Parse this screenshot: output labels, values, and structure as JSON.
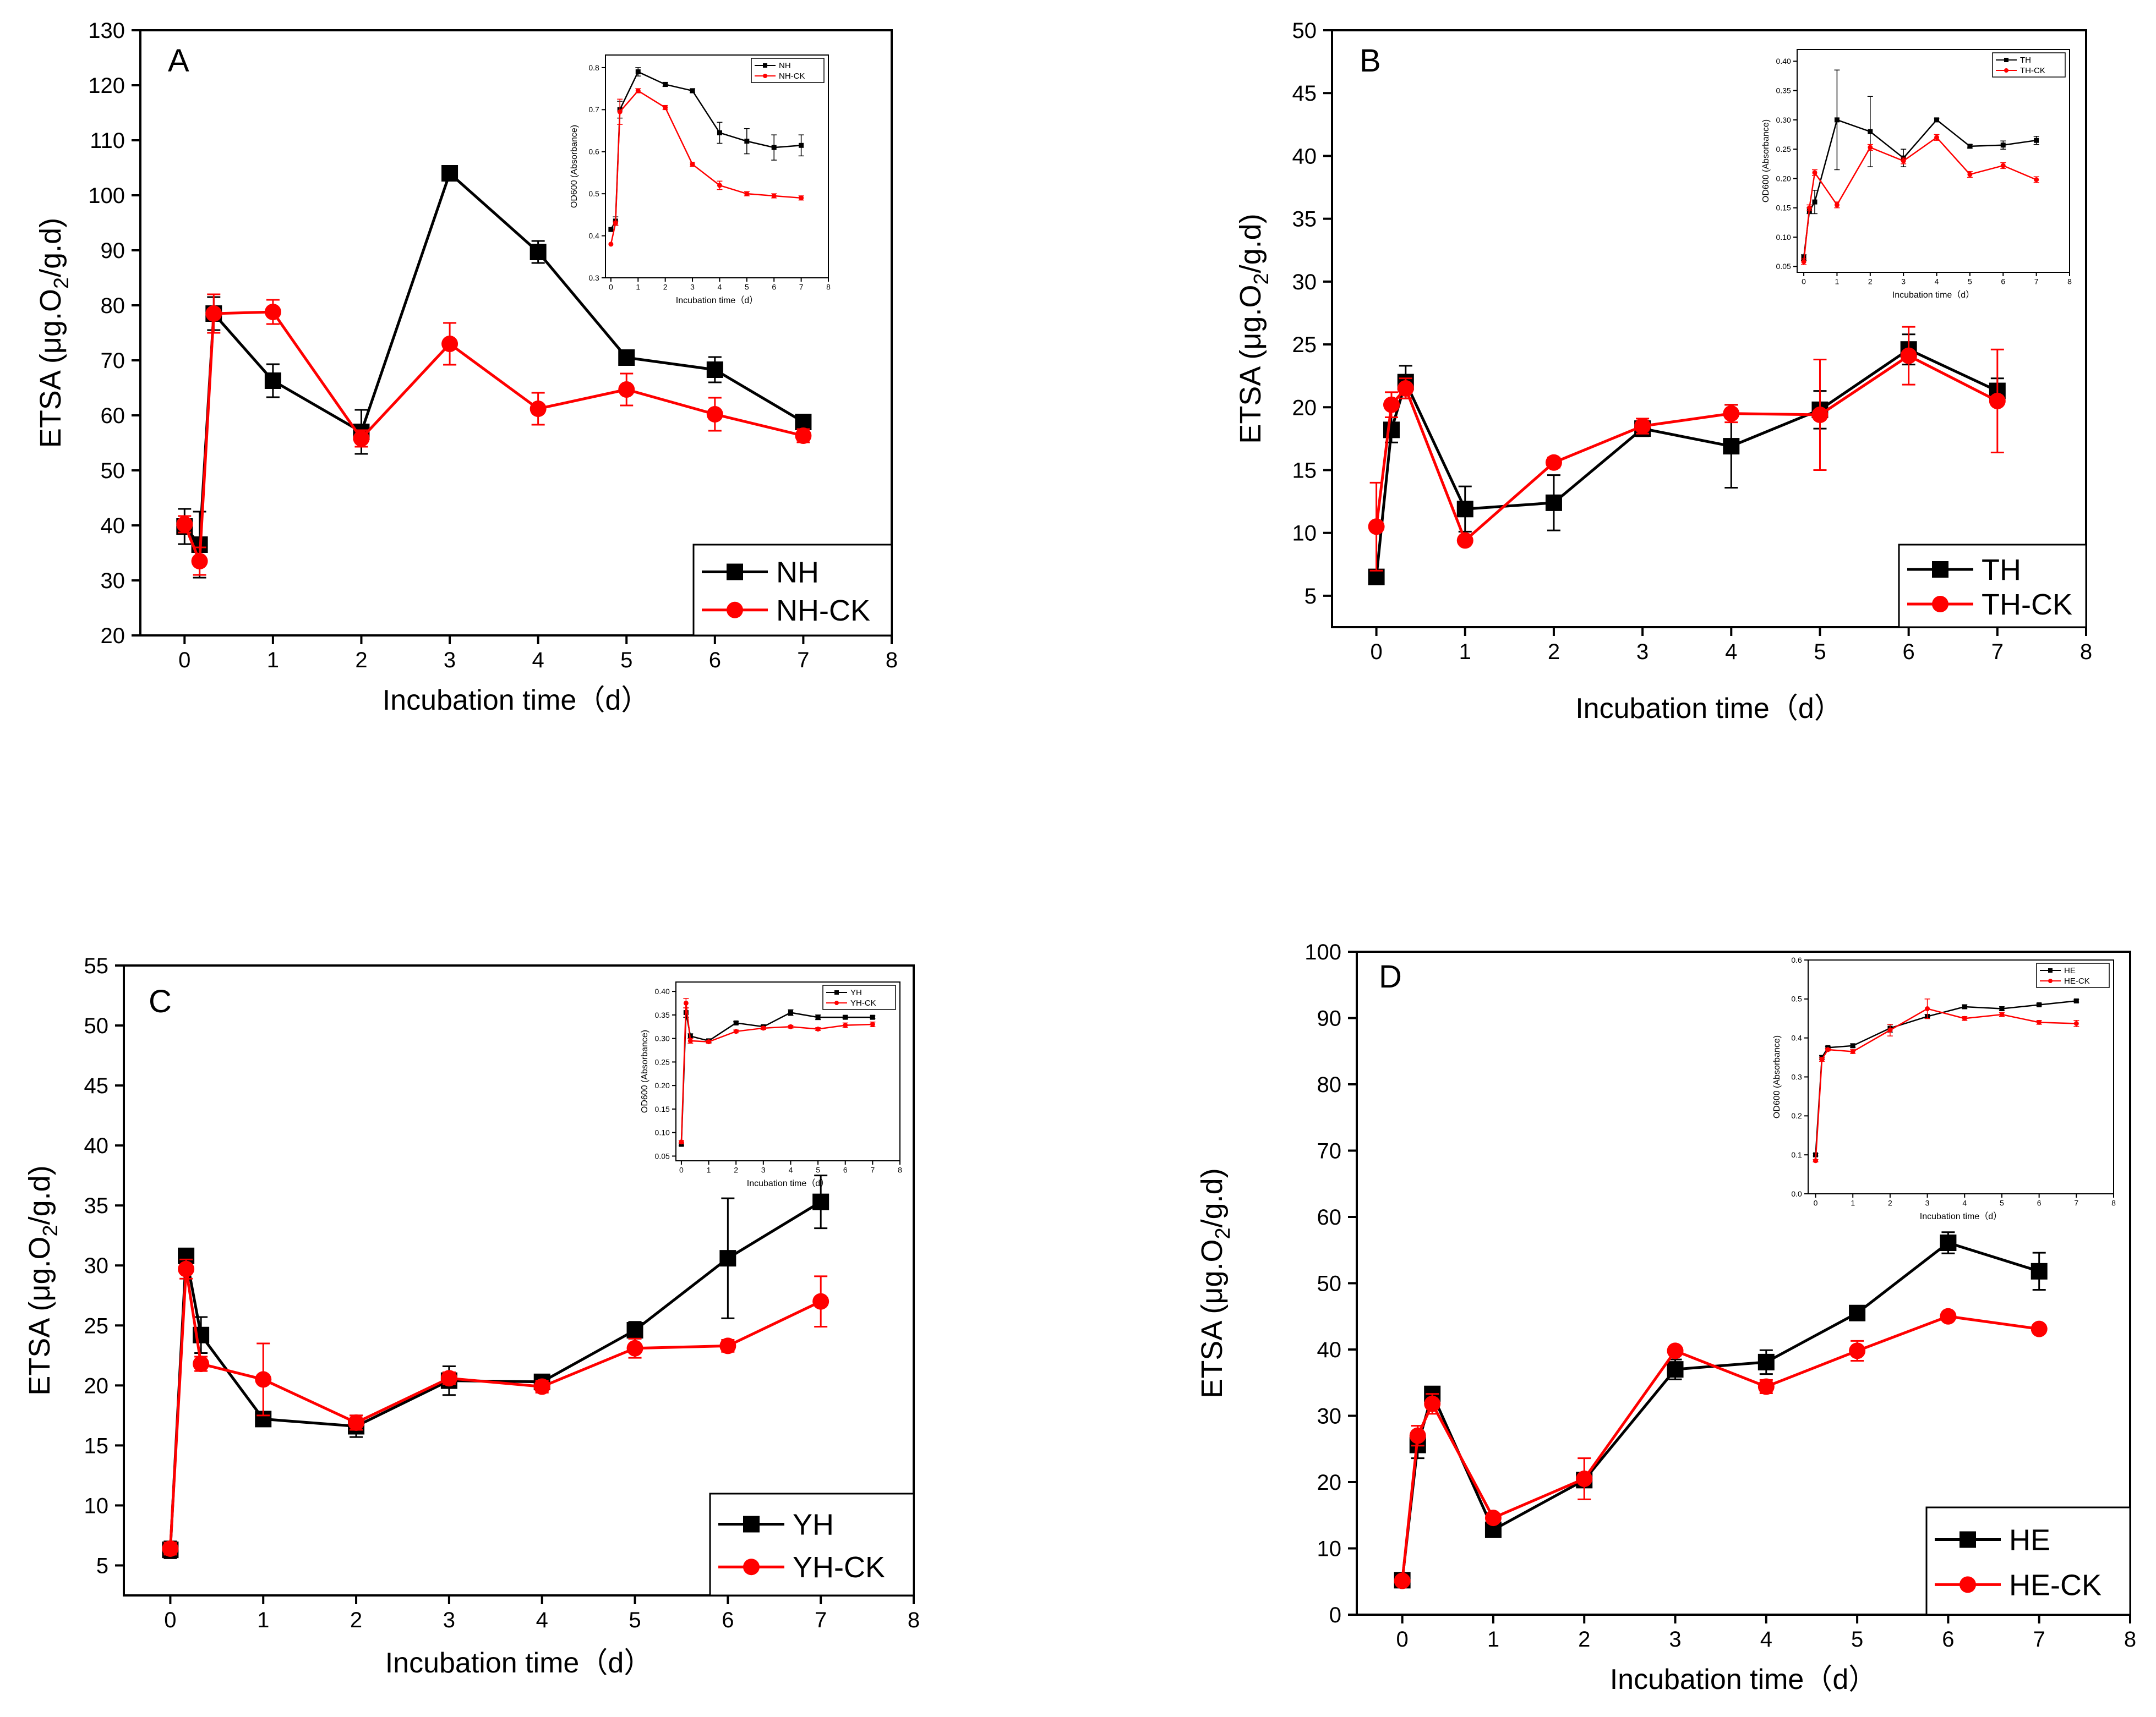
{
  "colors": {
    "series1": "#000000",
    "series2": "#ff0000",
    "axis": "#000000"
  },
  "chart_data": [
    {
      "panel": "A",
      "type": "line",
      "xlabel": "Incubation time（d）",
      "ylabel_main": "ETSA (μg.O",
      "ylabel_sub": "2",
      "ylabel_tail": "/g.d)",
      "xlim": [
        -0.5,
        8
      ],
      "ylim": [
        20,
        130
      ],
      "xticks": [
        0,
        1,
        2,
        3,
        4,
        5,
        6,
        7,
        8
      ],
      "yticks": [
        20,
        30,
        40,
        50,
        60,
        70,
        80,
        90,
        100,
        110,
        120,
        130
      ],
      "series": [
        {
          "name": "NH",
          "x": [
            0,
            0.17,
            0.33,
            1,
            2,
            3,
            4,
            5,
            6,
            7
          ],
          "y": [
            39.8,
            36.5,
            78.5,
            66.3,
            57.0,
            104.0,
            89.7,
            70.5,
            68.3,
            58.8
          ],
          "err": [
            3.2,
            6.0,
            3.0,
            3.0,
            4.0,
            0.6,
            2.0,
            0.8,
            2.3,
            1.0
          ]
        },
        {
          "name": "NH-CK",
          "x": [
            0,
            0.17,
            0.33,
            1,
            2,
            3,
            4,
            5,
            6,
            7
          ],
          "y": [
            40.2,
            33.5,
            78.5,
            78.8,
            55.8,
            73.0,
            61.2,
            64.7,
            60.2,
            56.3
          ],
          "err": [
            1.5,
            2.5,
            3.5,
            2.2,
            1.5,
            3.8,
            2.9,
            2.9,
            3.0,
            1.2
          ]
        }
      ],
      "inset": {
        "xlabel": "Incubation time（d）",
        "ylabel": "OD600 (Absorbance)",
        "xlim": [
          -0.2,
          8
        ],
        "ylim": [
          0.3,
          0.83
        ],
        "xticks": [
          0,
          1,
          2,
          3,
          4,
          5,
          6,
          7,
          8
        ],
        "yticks": [
          0.3,
          0.4,
          0.5,
          0.6,
          0.7,
          0.8
        ],
        "ytick_labels": [
          "0.3",
          "0.4",
          "0.5",
          "0.6",
          "0.7",
          "0.8"
        ],
        "series": [
          {
            "name": "NH",
            "x": [
              0,
              0.17,
              0.33,
              1,
              2,
              3,
              4,
              5,
              6,
              7
            ],
            "y": [
              0.415,
              0.435,
              0.7,
              0.79,
              0.76,
              0.745,
              0.645,
              0.625,
              0.61,
              0.615
            ],
            "err": [
              0,
              0.01,
              0.02,
              0.01,
              0.005,
              0.005,
              0.025,
              0.03,
              0.03,
              0.025
            ]
          },
          {
            "name": "NH-CK",
            "x": [
              0,
              0.17,
              0.33,
              1,
              2,
              3,
              4,
              5,
              6,
              7
            ],
            "y": [
              0.38,
              0.43,
              0.695,
              0.745,
              0.705,
              0.57,
              0.52,
              0.5,
              0.495,
              0.49
            ],
            "err": [
              0,
              0.005,
              0.03,
              0.005,
              0.005,
              0.005,
              0.01,
              0.005,
              0.005,
              0.005
            ]
          }
        ]
      }
    },
    {
      "panel": "B",
      "type": "line",
      "xlabel": "Incubation time（d）",
      "ylabel_main": "ETSA (μg.O",
      "ylabel_sub": "2",
      "ylabel_tail": "/g.d)",
      "xlim": [
        -0.5,
        8
      ],
      "ylim": [
        2.5,
        50
      ],
      "xticks": [
        0,
        1,
        2,
        3,
        4,
        5,
        6,
        7,
        8
      ],
      "yticks": [
        5,
        10,
        15,
        20,
        25,
        30,
        35,
        40,
        45,
        50
      ],
      "series": [
        {
          "name": "TH",
          "x": [
            0,
            0.17,
            0.33,
            1,
            2,
            3,
            4,
            5,
            6,
            7
          ],
          "y": [
            6.5,
            18.2,
            22.0,
            11.9,
            12.4,
            18.3,
            16.9,
            19.8,
            24.6,
            21.3
          ],
          "err": [
            0.3,
            1.0,
            1.3,
            1.8,
            2.2,
            0.6,
            3.3,
            1.5,
            1.2,
            1.0
          ]
        },
        {
          "name": "TH-CK",
          "x": [
            0,
            0.17,
            0.33,
            1,
            2,
            3,
            4,
            5,
            6,
            7
          ],
          "y": [
            10.5,
            20.2,
            21.5,
            9.4,
            15.6,
            18.5,
            19.5,
            19.4,
            24.1,
            20.5
          ],
          "err": [
            3.5,
            1.0,
            0.8,
            0.3,
            0.4,
            0.6,
            0.7,
            4.4,
            2.3,
            4.1
          ]
        }
      ],
      "inset": {
        "xlabel": "Incubation time（d）",
        "ylabel": "OD600 (Absorbance)",
        "xlim": [
          -0.2,
          8
        ],
        "ylim": [
          0.04,
          0.42
        ],
        "xticks": [
          0,
          1,
          2,
          3,
          4,
          5,
          6,
          7,
          8
        ],
        "yticks": [
          0.05,
          0.1,
          0.15,
          0.2,
          0.25,
          0.3,
          0.35,
          0.4
        ],
        "ytick_labels": [
          "0.05",
          "0.10",
          "0.15",
          "0.20",
          "0.25",
          "0.30",
          "0.35",
          "0.40"
        ],
        "series": [
          {
            "name": "TH",
            "x": [
              0,
              0.17,
              0.33,
              1,
              2,
              3,
              4,
              5,
              6,
              7
            ],
            "y": [
              0.065,
              0.145,
              0.16,
              0.3,
              0.28,
              0.235,
              0.3,
              0.255,
              0.257,
              0.265
            ],
            "err": [
              0.005,
              0.005,
              0.02,
              0.085,
              0.06,
              0.015,
              0.003,
              0.003,
              0.007,
              0.007
            ]
          },
          {
            "name": "TH-CK",
            "x": [
              0,
              0.17,
              0.33,
              1,
              2,
              3,
              4,
              5,
              6,
              7
            ],
            "y": [
              0.058,
              0.15,
              0.21,
              0.155,
              0.253,
              0.23,
              0.27,
              0.207,
              0.222,
              0.198
            ],
            "err": [
              0.005,
              0.005,
              0.005,
              0.005,
              0.005,
              0.005,
              0.005,
              0.005,
              0.005,
              0.005
            ]
          }
        ]
      }
    },
    {
      "panel": "C",
      "type": "line",
      "xlabel": "Incubation time（d）",
      "ylabel_main": "ETSA (μg.O",
      "ylabel_sub": "2",
      "ylabel_tail": "/g.d)",
      "xlim": [
        -0.5,
        8
      ],
      "ylim": [
        2.5,
        55
      ],
      "xticks": [
        0,
        1,
        2,
        3,
        4,
        5,
        6,
        7,
        8
      ],
      "yticks": [
        5,
        10,
        15,
        20,
        25,
        30,
        35,
        40,
        45,
        50,
        55
      ],
      "series": [
        {
          "name": "YH",
          "x": [
            0,
            0.17,
            0.33,
            1,
            2,
            3,
            4,
            5,
            6,
            7
          ],
          "y": [
            6.3,
            30.8,
            24.2,
            17.2,
            16.6,
            20.4,
            20.3,
            24.6,
            30.6,
            35.3
          ],
          "err": [
            0.7,
            0.4,
            1.5,
            0.3,
            0.9,
            1.2,
            0.5,
            0.7,
            5.0,
            2.2
          ]
        },
        {
          "name": "YH-CK",
          "x": [
            0,
            0.17,
            0.33,
            1,
            2,
            3,
            4,
            5,
            6,
            7
          ],
          "y": [
            6.4,
            29.7,
            21.8,
            20.5,
            16.9,
            20.6,
            19.9,
            23.1,
            23.3,
            27.0
          ],
          "err": [
            0.5,
            0.8,
            0.6,
            3.0,
            0.6,
            0.5,
            0.5,
            0.8,
            0.5,
            2.1
          ]
        }
      ],
      "inset": {
        "xlabel": "Incubation time（d）",
        "ylabel": "OD600 (Absorbance)",
        "xlim": [
          -0.2,
          8
        ],
        "ylim": [
          0.04,
          0.42
        ],
        "xticks": [
          0,
          1,
          2,
          3,
          4,
          5,
          6,
          7,
          8
        ],
        "yticks": [
          0.05,
          0.1,
          0.15,
          0.2,
          0.25,
          0.3,
          0.35,
          0.4
        ],
        "ytick_labels": [
          "0.05",
          "0.10",
          "0.15",
          "0.20",
          "0.25",
          "0.30",
          "0.35",
          "0.40"
        ],
        "series": [
          {
            "name": "YH",
            "x": [
              0,
              0.17,
              0.33,
              1,
              2,
              3,
              4,
              5,
              6,
              7
            ],
            "y": [
              0.075,
              0.355,
              0.305,
              0.295,
              0.333,
              0.325,
              0.355,
              0.345,
              0.345,
              0.345
            ],
            "err": [
              0.003,
              0.01,
              0.005,
              0.003,
              0.003,
              0.003,
              0.006,
              0.005,
              0.003,
              0.003
            ]
          },
          {
            "name": "YH-CK",
            "x": [
              0,
              0.17,
              0.33,
              1,
              2,
              3,
              4,
              5,
              6,
              7
            ],
            "y": [
              0.08,
              0.375,
              0.295,
              0.293,
              0.315,
              0.322,
              0.325,
              0.32,
              0.328,
              0.33
            ],
            "err": [
              0.003,
              0.01,
              0.005,
              0.003,
              0.003,
              0.003,
              0.003,
              0.003,
              0.005,
              0.005
            ]
          }
        ]
      }
    },
    {
      "panel": "D",
      "type": "line",
      "xlabel": "Incubation time（d）",
      "ylabel_main": "ETSA (μg.O",
      "ylabel_sub": "2",
      "ylabel_tail": "/g.d)",
      "xlim": [
        -0.5,
        8
      ],
      "ylim": [
        0,
        100
      ],
      "xticks": [
        0,
        1,
        2,
        3,
        4,
        5,
        6,
        7,
        8
      ],
      "yticks": [
        0,
        10,
        20,
        30,
        40,
        50,
        60,
        70,
        80,
        90,
        100
      ],
      "series": [
        {
          "name": "HE",
          "x": [
            0,
            0.17,
            0.33,
            1,
            2,
            3,
            4,
            5,
            6,
            7
          ],
          "y": [
            5.2,
            25.6,
            33.3,
            12.8,
            20.3,
            37.0,
            38.1,
            45.5,
            56.1,
            51.8
          ],
          "err": [
            0.5,
            2.0,
            1.0,
            0.5,
            0.8,
            1.5,
            1.8,
            0.6,
            1.6,
            2.8
          ]
        },
        {
          "name": "HE-CK",
          "x": [
            0,
            0.17,
            0.33,
            1,
            2,
            3,
            4,
            5,
            6,
            7
          ],
          "y": [
            5.1,
            27.0,
            31.8,
            14.6,
            20.5,
            39.8,
            34.4,
            39.8,
            45.0,
            43.1
          ],
          "err": [
            0.4,
            1.5,
            1.5,
            0.5,
            3.1,
            0.6,
            1.0,
            1.5,
            0.5,
            0.5
          ]
        }
      ],
      "inset": {
        "xlabel": "Incubation time（d）",
        "ylabel": "OD600 (Absorbance)",
        "xlim": [
          -0.2,
          8
        ],
        "ylim": [
          0,
          0.6
        ],
        "xticks": [
          0,
          1,
          2,
          3,
          4,
          5,
          6,
          7,
          8
        ],
        "yticks": [
          0,
          0.1,
          0.2,
          0.3,
          0.4,
          0.5,
          0.6
        ],
        "ytick_labels": [
          "0.0",
          "0.1",
          "0.2",
          "0.3",
          "0.4",
          "0.5",
          "0.6"
        ],
        "series": [
          {
            "name": "HE",
            "x": [
              0,
              0.17,
              0.33,
              1,
              2,
              3,
              4,
              5,
              6,
              7
            ],
            "y": [
              0.1,
              0.35,
              0.375,
              0.38,
              0.425,
              0.455,
              0.48,
              0.475,
              0.485,
              0.495
            ],
            "err": [
              0.003,
              0.005,
              0.003,
              0.005,
              0.01,
              0.005,
              0.005,
              0.005,
              0.003,
              0.003
            ]
          },
          {
            "name": "HE-CK",
            "x": [
              0,
              0.17,
              0.33,
              1,
              2,
              3,
              4,
              5,
              6,
              7
            ],
            "y": [
              0.085,
              0.345,
              0.37,
              0.365,
              0.42,
              0.475,
              0.45,
              0.46,
              0.44,
              0.437
            ],
            "err": [
              0.003,
              0.005,
              0.003,
              0.005,
              0.015,
              0.025,
              0.005,
              0.005,
              0.005,
              0.008
            ]
          }
        ]
      }
    }
  ]
}
